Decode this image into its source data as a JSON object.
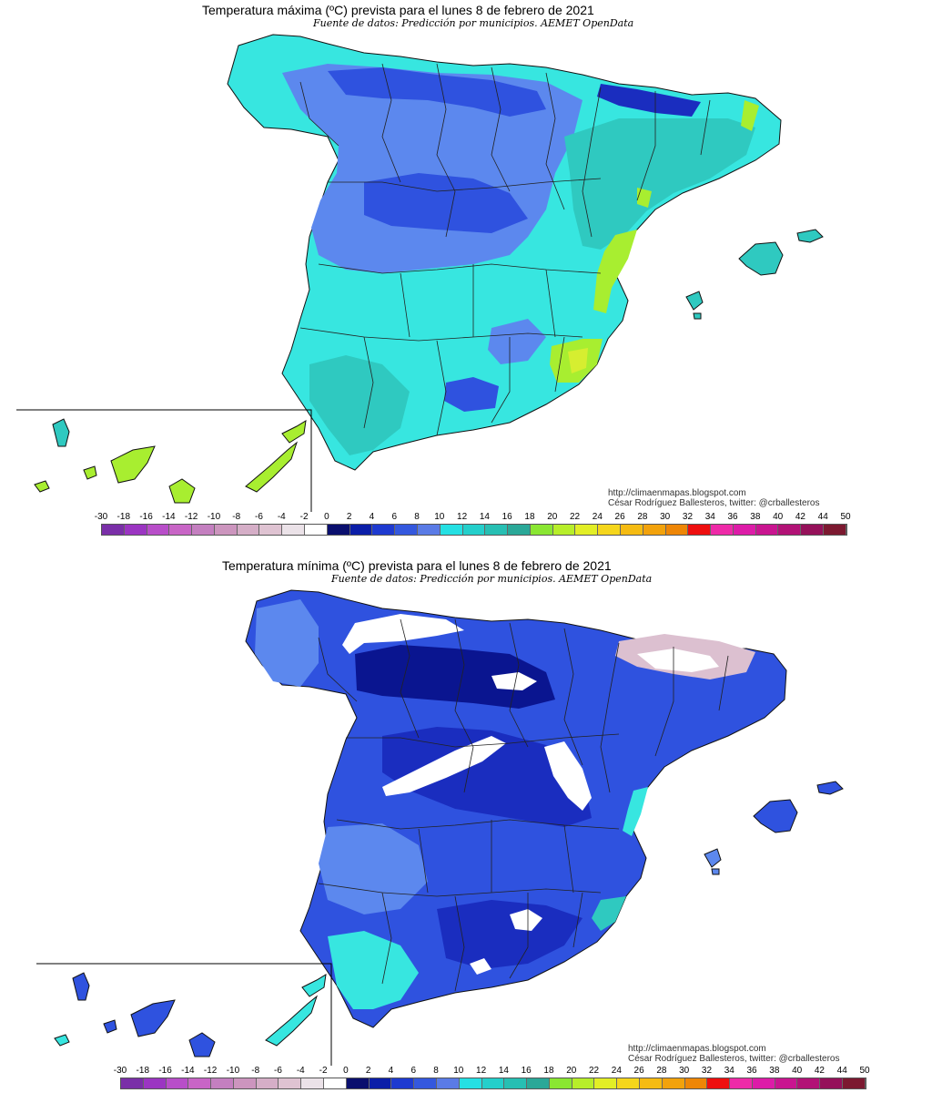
{
  "maps": [
    {
      "id": "max",
      "title": "Temperatura máxima (ºC) prevista para el lunes 8 de febrero de 2021",
      "subtitle": "Fuente de datos: Predicción por municipios. AEMET OpenData",
      "credit_url": "http://climaenmapas.blogspot.com",
      "credit_author": "César Rodríguez Ballesteros, twitter: @crballesteros"
    },
    {
      "id": "min",
      "title": "Temperatura mínima (ºC) prevista para el lunes 8 de febrero de 2021",
      "subtitle": "Fuente de datos: Predicción por municipios. AEMET OpenData",
      "credit_url": "http://climaenmapas.blogspot.com",
      "credit_author": "César Rodríguez Ballesteros, twitter: @crballesteros"
    }
  ],
  "legend": {
    "labels": [
      "-30",
      "-18",
      "-16",
      "-14",
      "-12",
      "-10",
      "-8",
      "-6",
      "-4",
      "-2",
      "0",
      "2",
      "4",
      "6",
      "8",
      "10",
      "12",
      "14",
      "16",
      "18",
      "20",
      "22",
      "24",
      "26",
      "28",
      "30",
      "32",
      "34",
      "36",
      "38",
      "40",
      "42",
      "44",
      "50"
    ],
    "colors": [
      "#7a2fa8",
      "#9b35c2",
      "#b84ec9",
      "#c865c6",
      "#c47fc0",
      "#cc95be",
      "#d5aec7",
      "#dfc3d2",
      "#ebe2e8",
      "#ffffff",
      "#0a0f6e",
      "#0b1ea8",
      "#1e3ad0",
      "#3458de",
      "#5a7be6",
      "#25e0e3",
      "#24cfcb",
      "#27bfb3",
      "#2aa898",
      "#8ae632",
      "#b7ee2a",
      "#e2ee26",
      "#f5d61c",
      "#f5bb12",
      "#f2a20c",
      "#ee8606",
      "#ee0f0f",
      "#ee2aa8",
      "#dd1ca8",
      "#c91590",
      "#b21276",
      "#95115a",
      "#7c1930"
    ]
  },
  "region_colors": {
    "cyan": "#37e6e0",
    "teal": "#2fc9c0",
    "light_blue": "#5c88ee",
    "blue": "#2f52df",
    "dark_blue": "#1a2dbf",
    "navy": "#0a1590",
    "green": "#a8ee30",
    "yellow_green": "#d6ee30",
    "white": "#ffffff",
    "pink": "#dcc0d0"
  }
}
